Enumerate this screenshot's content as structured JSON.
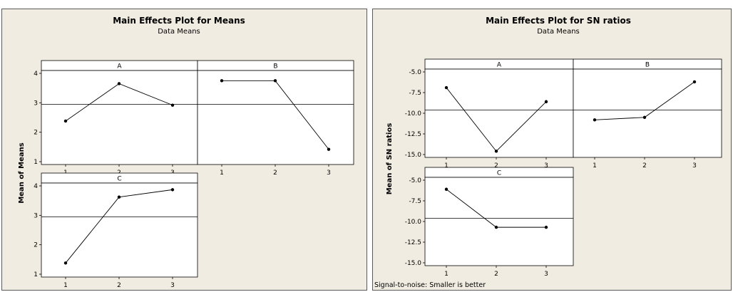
{
  "chart_data": [
    {
      "type": "line",
      "title": "Main Effects Plot for Means",
      "subtitle": "Data Means",
      "ylabel": "Mean of Means",
      "ylim": [
        1,
        4
      ],
      "yticks": [
        1,
        2,
        3,
        4
      ],
      "x": [
        1,
        2,
        3
      ],
      "reference_line": 2.95,
      "grid": false,
      "series": [
        {
          "name": "A",
          "values": [
            2.38,
            3.65,
            2.92
          ]
        },
        {
          "name": "B",
          "values": [
            3.75,
            3.75,
            1.42
          ]
        },
        {
          "name": "C",
          "values": [
            1.38,
            3.62,
            3.87
          ]
        }
      ],
      "footnote": ""
    },
    {
      "type": "line",
      "title": "Main Effects Plot for SN ratios",
      "subtitle": "Data Means",
      "ylabel": "Mean of SN ratios",
      "ylim": [
        -15,
        -5
      ],
      "yticks": [
        -5,
        -7.5,
        -10,
        -12.5,
        -15
      ],
      "ytick_labels": [
        "-5.0",
        "-7.5",
        "-10.0",
        "-12.5",
        "-15.0"
      ],
      "x": [
        1,
        2,
        3
      ],
      "reference_line": -9.6,
      "grid": false,
      "series": [
        {
          "name": "A",
          "values": [
            -6.9,
            -14.6,
            -8.6
          ]
        },
        {
          "name": "B",
          "values": [
            -10.8,
            -10.5,
            -6.2
          ]
        },
        {
          "name": "C",
          "values": [
            -6.1,
            -10.7,
            -10.7
          ]
        }
      ],
      "footnote": "Signal-to-noise: Smaller is better"
    }
  ]
}
